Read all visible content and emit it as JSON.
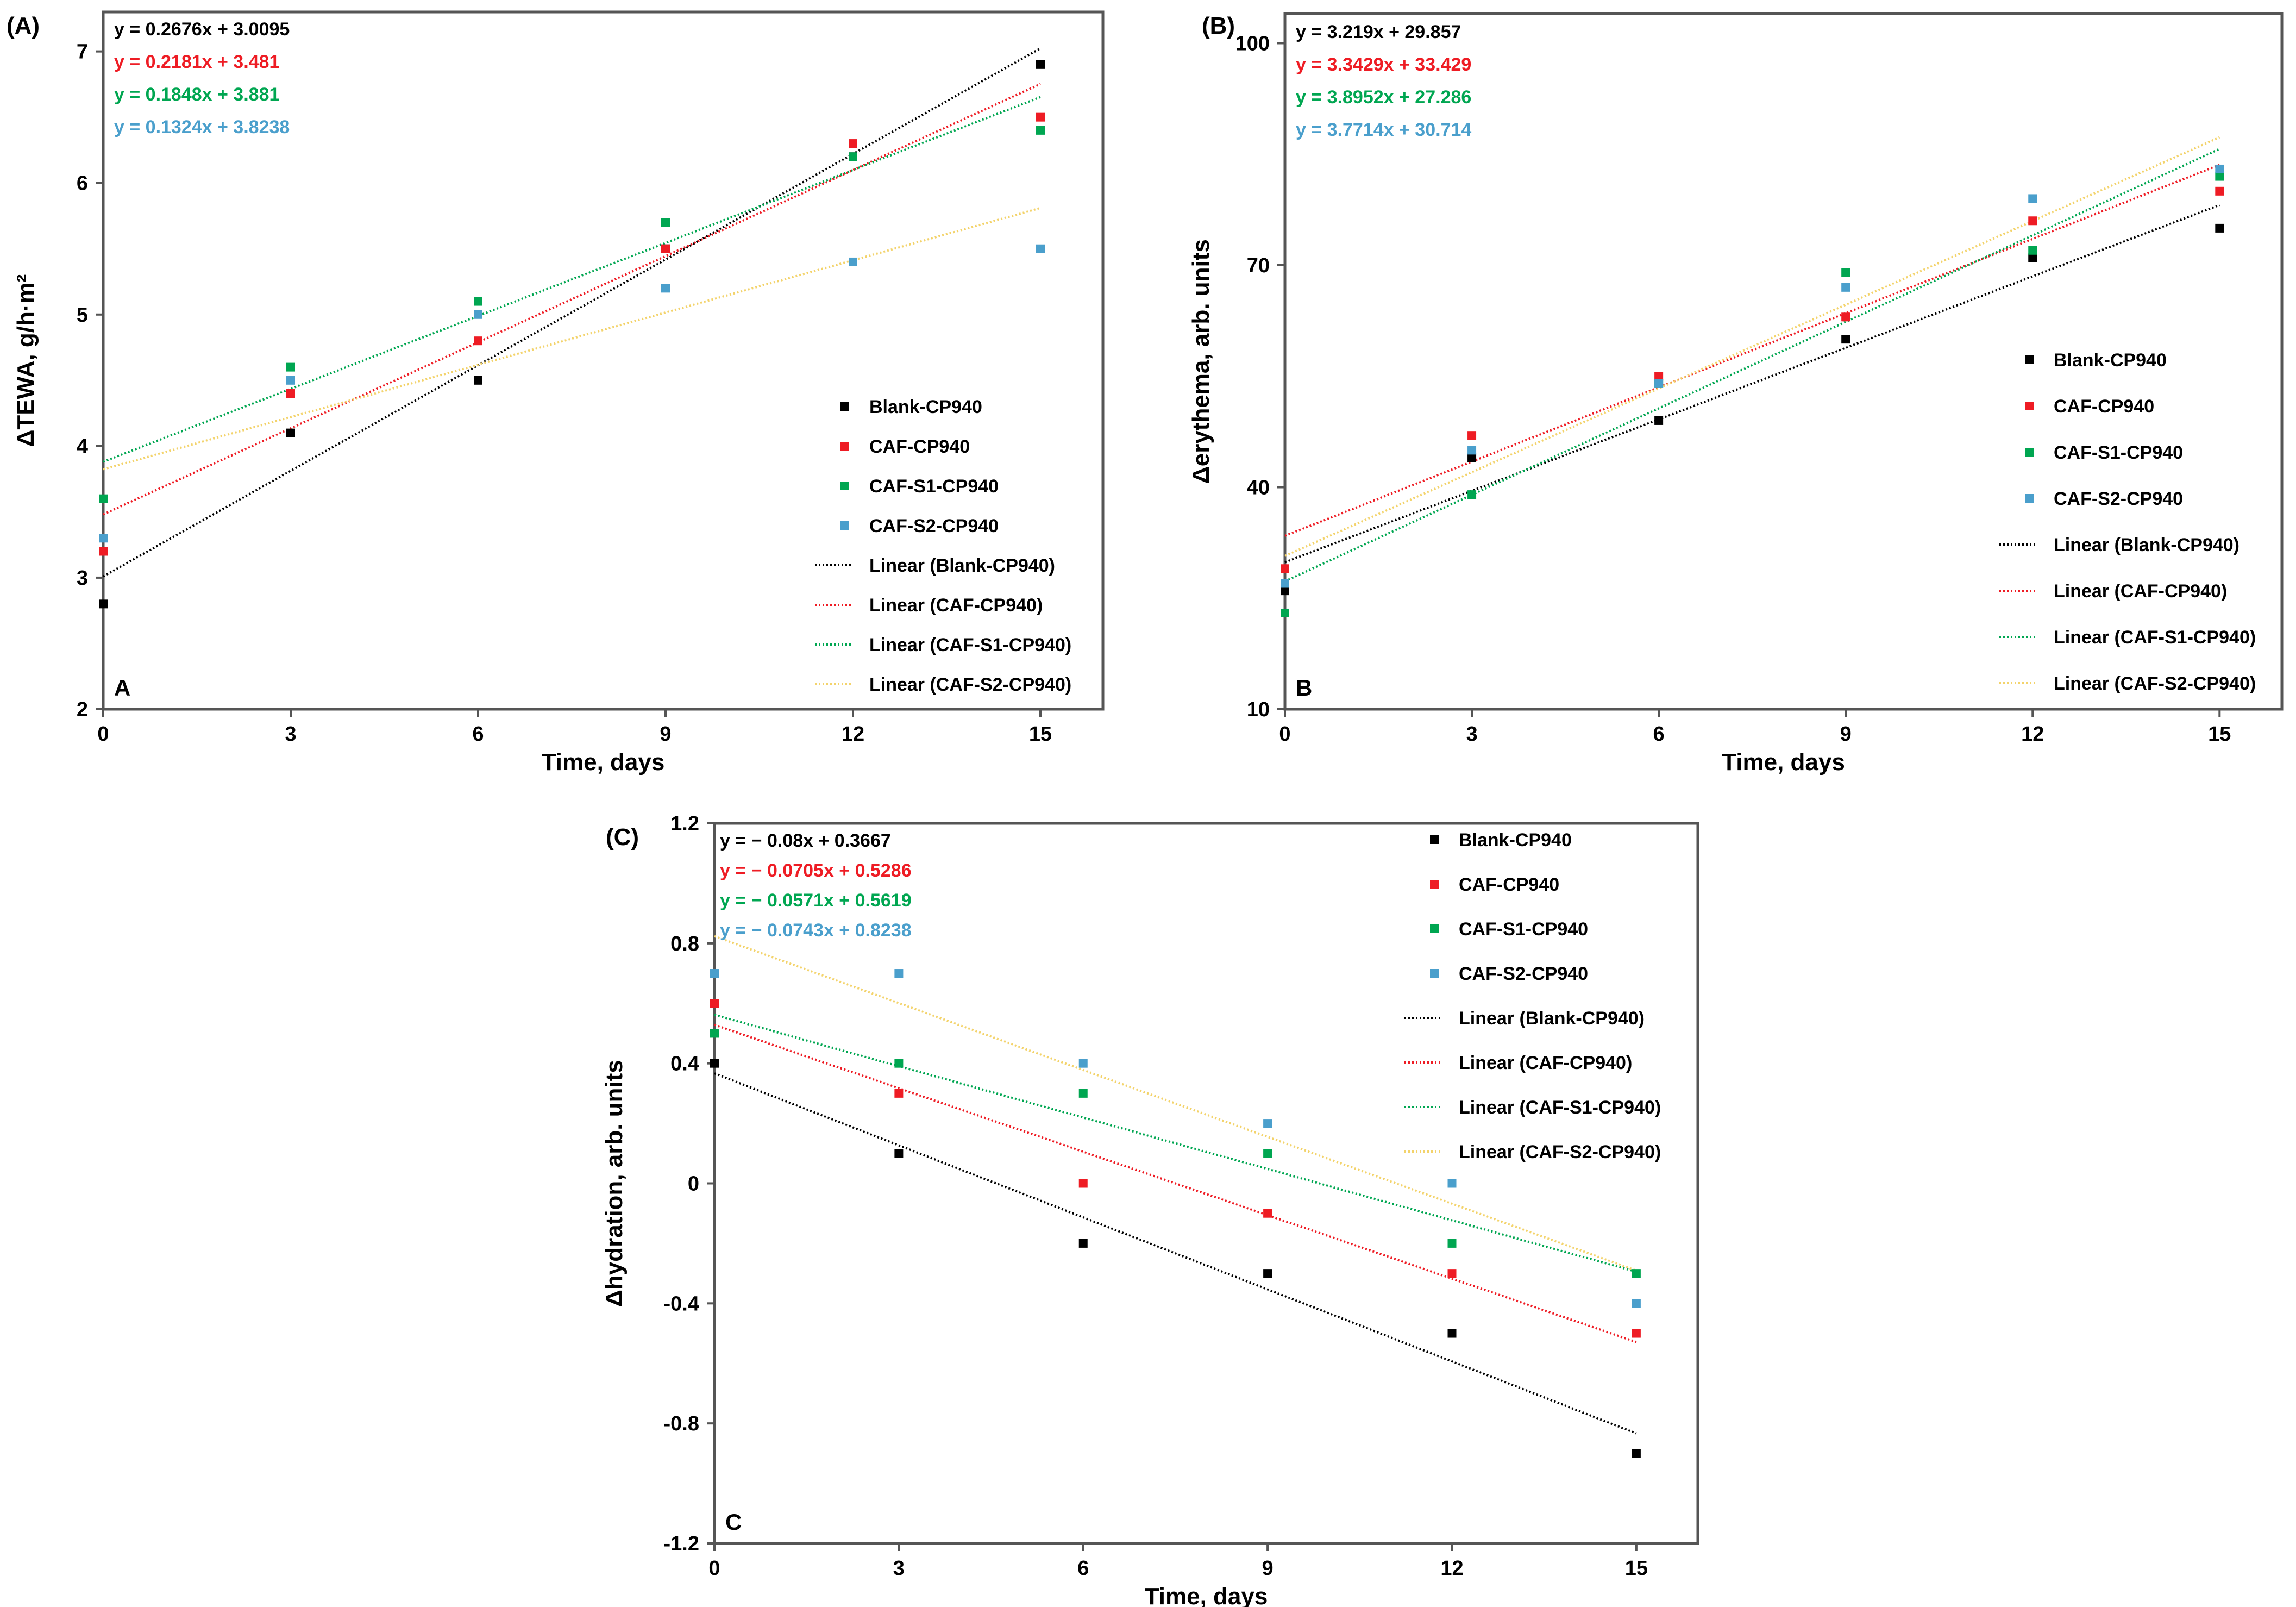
{
  "colors": {
    "blank": "#000000",
    "caf": "#ee1c24",
    "s1": "#00a651",
    "s2": "#4a9fcc",
    "s2_fit": "#f3d36b"
  },
  "chart_data": [
    {
      "type": "scatter",
      "panel_label": "(A)",
      "corner_label": "A",
      "xlabel": "Time, days",
      "ylabel": "ΔTEWA, g/h·m²",
      "xlim": [
        0,
        16
      ],
      "ylim": [
        2,
        7.3
      ],
      "x_ticks": [
        0,
        3,
        6,
        9,
        12,
        15
      ],
      "y_ticks": [
        2,
        3,
        4,
        5,
        6,
        7
      ],
      "x_tick_labels": [
        "0",
        "3",
        "6",
        "9",
        "12",
        "15"
      ],
      "y_tick_labels": [
        "2",
        "3",
        "4",
        "5",
        "6",
        "7"
      ],
      "equations": [
        "y = 0.2676x + 3.0095",
        "y = 0.2181x + 3.481",
        "y = 0.1848x + 3.881",
        "y = 0.1324x + 3.8238"
      ],
      "legend": [
        "Blank-CP940",
        "CAF-CP940",
        "CAF-S1-CP940",
        "CAF-S2-CP940",
        "Linear (Blank-CP940)",
        "Linear (CAF-CP940)",
        "Linear (CAF-S1-CP940)",
        "Linear (CAF-S2-CP940)"
      ],
      "legend_position": "lower-right",
      "x": [
        0,
        3,
        6,
        9,
        12,
        15
      ],
      "series": [
        {
          "name": "Blank-CP940",
          "values": [
            2.8,
            4.1,
            4.5,
            5.5,
            6.2,
            6.9
          ],
          "slope": 0.2676,
          "intercept": 3.0095
        },
        {
          "name": "CAF-CP940",
          "values": [
            3.2,
            4.4,
            4.8,
            5.5,
            6.3,
            6.5
          ],
          "slope": 0.2181,
          "intercept": 3.481
        },
        {
          "name": "CAF-S1-CP940",
          "values": [
            3.6,
            4.6,
            5.1,
            5.7,
            6.2,
            6.4
          ],
          "slope": 0.1848,
          "intercept": 3.881
        },
        {
          "name": "CAF-S2-CP940",
          "values": [
            3.3,
            4.5,
            5.0,
            5.2,
            5.4,
            5.5
          ],
          "slope": 0.1324,
          "intercept": 3.8238
        }
      ]
    },
    {
      "type": "scatter",
      "panel_label": "(B)",
      "corner_label": "B",
      "xlabel": "Time, days",
      "ylabel": "Δerythema, arb. units",
      "xlim": [
        0,
        16
      ],
      "ylim": [
        10,
        104
      ],
      "x_ticks": [
        0,
        3,
        6,
        9,
        12,
        15
      ],
      "y_ticks": [
        10,
        40,
        70,
        100
      ],
      "x_tick_labels": [
        "0",
        "3",
        "6",
        "9",
        "12",
        "15"
      ],
      "y_tick_labels": [
        "10",
        "40",
        "70",
        "100"
      ],
      "equations": [
        "y = 3.219x + 29.857",
        "y = 3.3429x + 33.429",
        "y = 3.8952x + 27.286",
        "y = 3.7714x + 30.714"
      ],
      "legend": [
        "Blank-CP940",
        "CAF-CP940",
        "CAF-S1-CP940",
        "CAF-S2-CP940",
        "Linear (Blank-CP940)",
        "Linear (CAF-CP940)",
        "Linear (CAF-S1-CP940)",
        "Linear (CAF-S2-CP940)"
      ],
      "legend_position": "lower-right",
      "x": [
        0,
        3,
        6,
        9,
        12,
        15
      ],
      "series": [
        {
          "name": "Blank-CP940",
          "values": [
            26,
            44,
            49,
            60,
            71,
            75
          ],
          "slope": 3.219,
          "intercept": 29.857
        },
        {
          "name": "CAF-CP940",
          "values": [
            29,
            47,
            55,
            63,
            76,
            80
          ],
          "slope": 3.3429,
          "intercept": 33.429
        },
        {
          "name": "CAF-S1-CP940",
          "values": [
            23,
            39,
            54,
            69,
            72,
            82
          ],
          "slope": 3.8952,
          "intercept": 27.286
        },
        {
          "name": "CAF-S2-CP940",
          "values": [
            27,
            45,
            54,
            67,
            79,
            83
          ],
          "slope": 3.7714,
          "intercept": 30.714
        }
      ]
    },
    {
      "type": "scatter",
      "panel_label": "(C)",
      "corner_label": "C",
      "xlabel": "Time, days",
      "ylabel": "Δhydration, arb. units",
      "xlim": [
        0,
        16
      ],
      "ylim": [
        -1.2,
        1.2
      ],
      "x_ticks": [
        0,
        3,
        6,
        9,
        12,
        15
      ],
      "y_ticks": [
        -1.2,
        -0.8,
        -0.4,
        0,
        0.4,
        0.8,
        1.2
      ],
      "x_tick_labels": [
        "0",
        "3",
        "6",
        "9",
        "12",
        "15"
      ],
      "y_tick_labels": [
        "-1.2",
        "-0.8",
        "-0.4",
        "0",
        "0.4",
        "0.8",
        "1.2"
      ],
      "equations": [
        "y = − 0.08x + 0.3667",
        "y = − 0.0705x + 0.5286",
        "y = − 0.0571x + 0.5619",
        "y = − 0.0743x + 0.8238"
      ],
      "legend": [
        "Blank-CP940",
        "CAF-CP940",
        "CAF-S1-CP940",
        "CAF-S2-CP940",
        "Linear (Blank-CP940)",
        "Linear (CAF-CP940)",
        "Linear (CAF-S1-CP940)",
        "Linear (CAF-S2-CP940)"
      ],
      "legend_position": "top-right",
      "x": [
        0,
        3,
        6,
        9,
        12,
        15
      ],
      "series": [
        {
          "name": "Blank-CP940",
          "values": [
            0.4,
            0.1,
            -0.2,
            -0.3,
            -0.5,
            -0.9
          ],
          "slope": -0.08,
          "intercept": 0.3667
        },
        {
          "name": "CAF-CP940",
          "values": [
            0.6,
            0.3,
            0.0,
            -0.1,
            -0.3,
            -0.5
          ],
          "slope": -0.0705,
          "intercept": 0.5286
        },
        {
          "name": "CAF-S1-CP940",
          "values": [
            0.5,
            0.4,
            0.3,
            0.1,
            -0.2,
            -0.3
          ],
          "slope": -0.0571,
          "intercept": 0.5619
        },
        {
          "name": "CAF-S2-CP940",
          "values": [
            0.7,
            0.7,
            0.4,
            0.2,
            0.0,
            -0.4
          ],
          "slope": -0.0743,
          "intercept": 0.8238
        }
      ]
    }
  ]
}
